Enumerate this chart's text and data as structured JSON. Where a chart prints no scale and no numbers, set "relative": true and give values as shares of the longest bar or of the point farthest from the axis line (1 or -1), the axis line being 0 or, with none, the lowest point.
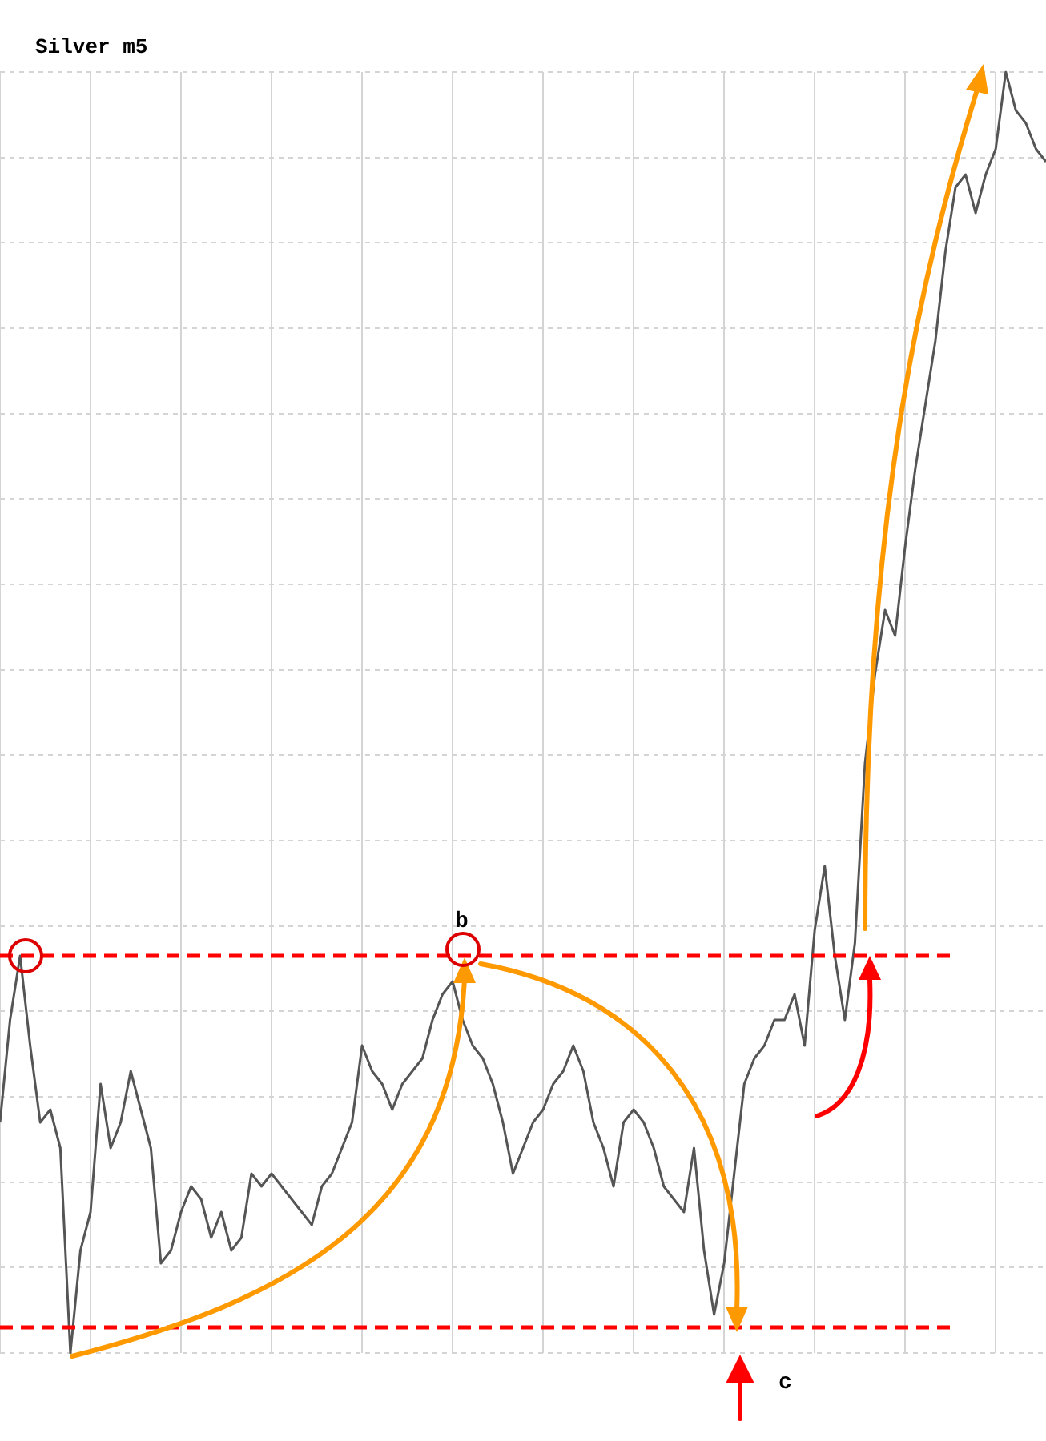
{
  "chart_data": {
    "type": "line",
    "title": "Silver m5",
    "relative": true,
    "grid": true,
    "legend": false,
    "categories": [
      null,
      null,
      null,
      null,
      null,
      null,
      null,
      null,
      null,
      null,
      null,
      null,
      null,
      null,
      null,
      null,
      null,
      null,
      null,
      null,
      null,
      null,
      null,
      null,
      null,
      null,
      null,
      null,
      null,
      null,
      null,
      null,
      null,
      null,
      null,
      null,
      null,
      null,
      null,
      null,
      null,
      null,
      null,
      null,
      null,
      null,
      null,
      null,
      null,
      null,
      null,
      null,
      null,
      null,
      null,
      null,
      null,
      null,
      null,
      null,
      null,
      null,
      null,
      null,
      null,
      null,
      null,
      null,
      null,
      null,
      null,
      null,
      null,
      null,
      null,
      null,
      null,
      null,
      null,
      null,
      null,
      null,
      null,
      null,
      null,
      null,
      null,
      null,
      null,
      null,
      null,
      null,
      null,
      null,
      null,
      null,
      null,
      null,
      null,
      null,
      null,
      null,
      null,
      null,
      null
    ],
    "series": [
      {
        "color": "#555555",
        "values": [
          0.18,
          0.26,
          0.31,
          0.24,
          0.18,
          0.19,
          0.16,
          0,
          0.08,
          0.11,
          0.21,
          0.16,
          0.18,
          0.22,
          0.19,
          0.16,
          0.07,
          0.08,
          0.11,
          0.13,
          0.12,
          0.09,
          0.11,
          0.08,
          0.09,
          0.14,
          0.13,
          0.14,
          0.13,
          0.12,
          0.11,
          0.1,
          0.13,
          0.14,
          0.16,
          0.18,
          0.24,
          0.22,
          0.21,
          0.19,
          0.21,
          0.22,
          0.23,
          0.26,
          0.28,
          0.29,
          0.26,
          0.24,
          0.23,
          0.21,
          0.18,
          0.14,
          0.16,
          0.18,
          0.19,
          0.21,
          0.22,
          0.24,
          0.22,
          0.18,
          0.16,
          0.13,
          0.18,
          0.19,
          0.18,
          0.16,
          0.13,
          0.12,
          0.11,
          0.16,
          0.08,
          0.03,
          0.07,
          0.14,
          0.21,
          0.23,
          0.24,
          0.26,
          0.26,
          0.28,
          0.24,
          0.33,
          0.38,
          0.31,
          0.26,
          0.32,
          0.46,
          0.53,
          0.58,
          0.56,
          0.63,
          0.69,
          0.74,
          0.79,
          0.86,
          0.91,
          0.92,
          0.89,
          0.92,
          0.94,
          1,
          0.97,
          0.96,
          0.94,
          0.93
        ]
      }
    ],
    "ref_lines": [
      {
        "axis": "y",
        "value": 0.31,
        "color": "#ff0000",
        "line_style": "dashed"
      },
      {
        "axis": "y",
        "value": 0.02,
        "color": "#ff0000",
        "line_style": "dashed"
      }
    ],
    "annotations": [
      "b",
      "c"
    ]
  }
}
